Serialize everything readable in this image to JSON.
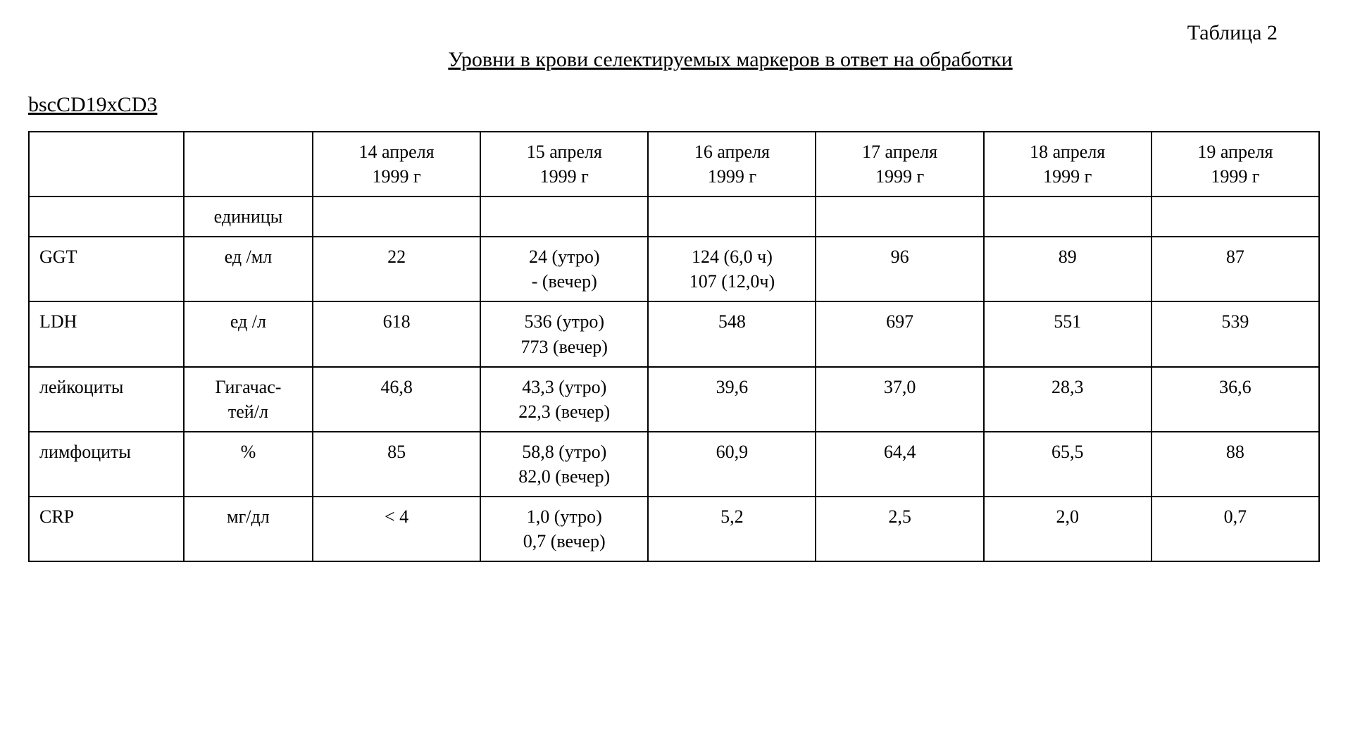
{
  "header": {
    "table_label": "Таблица 2",
    "title": "Уровни в крови селектируемых маркеров в ответ на обработки",
    "subtitle": "bscCD19xCD3"
  },
  "table": {
    "unit_header": "единицы",
    "date_headers": [
      "14 апреля\n1999 г",
      "15 апреля\n1999 г",
      "16 апреля\n1999 г",
      "17 апреля\n1999 г",
      "18 апреля\n1999 г",
      "19 апреля\n1999 г"
    ],
    "rows": [
      {
        "param": "GGT",
        "unit": "ед /мл",
        "values": [
          "22",
          "24 (утро)\n- (вечер)",
          "124 (6,0 ч)\n107 (12,0ч)",
          "96",
          "89",
          "87"
        ]
      },
      {
        "param": "LDH",
        "unit": "ед /л",
        "values": [
          "618",
          "536 (утро)\n773 (вечер)",
          "548",
          "697",
          "551",
          "539"
        ]
      },
      {
        "param": "лейкоциты",
        "unit": "Гигачас-\nтей/л",
        "values": [
          "46,8",
          "43,3 (утро)\n22,3 (вечер)",
          "39,6",
          "37,0",
          "28,3",
          "36,6"
        ]
      },
      {
        "param": "лимфоциты",
        "unit": "%",
        "values": [
          "85",
          "58,8 (утро)\n82,0 (вечер)",
          "60,9",
          "64,4",
          "65,5",
          "88"
        ]
      },
      {
        "param": "CRP",
        "unit": "мг/дл",
        "values": [
          "< 4",
          "1,0 (утро)\n0,7 (вечер)",
          "5,2",
          "2,5",
          "2,0",
          "0,7"
        ]
      }
    ]
  }
}
